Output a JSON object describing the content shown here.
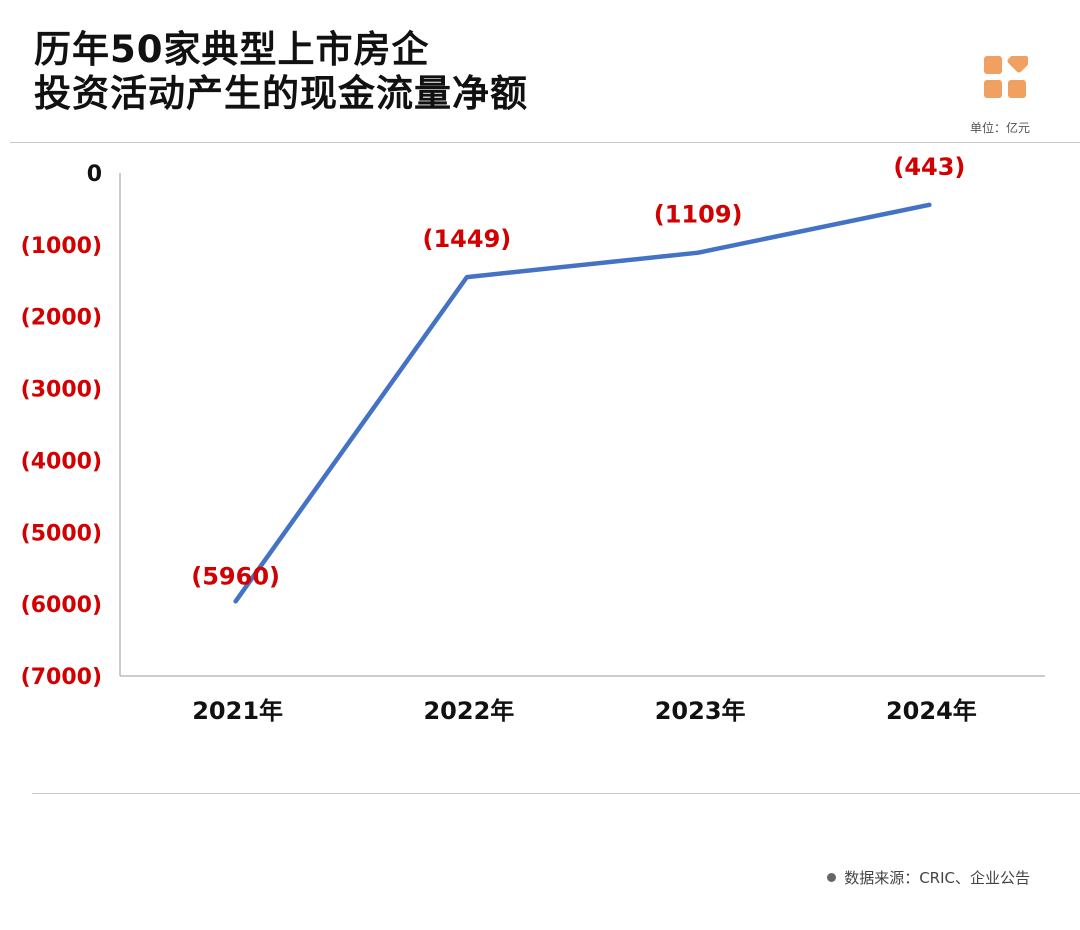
{
  "header": {
    "title_line1": "历年50家典型上市房企",
    "title_line2": "投资活动产生的现金流量净额",
    "unit": "单位：亿元",
    "logo_icon": "orange-blocks-logo-icon"
  },
  "footer": {
    "source": "数据来源：CRIC、企业公告"
  },
  "colors": {
    "line": "#4472c4",
    "negative_label": "#d20000",
    "zero_label": "#111111",
    "logo": "#f0a060"
  },
  "chart_data": {
    "type": "line",
    "title": "历年50家典型上市房企投资活动产生的现金流量净额",
    "categories": [
      "2021年",
      "2022年",
      "2023年",
      "2024年"
    ],
    "values": [
      -5960,
      -1449,
      -1109,
      -443
    ],
    "data_labels": [
      "(5960)",
      "(1449)",
      "(1109)",
      "(443)"
    ],
    "ylim": [
      -7000,
      0
    ],
    "yticks": [
      0,
      -1000,
      -2000,
      -3000,
      -4000,
      -5000,
      -6000,
      -7000
    ],
    "ytick_labels": [
      "0",
      "(1000)",
      "(2000)",
      "(3000)",
      "(4000)",
      "(5000)",
      "(6000)",
      "(7000)"
    ],
    "unit": "亿元",
    "grid": false,
    "legend": "none"
  }
}
